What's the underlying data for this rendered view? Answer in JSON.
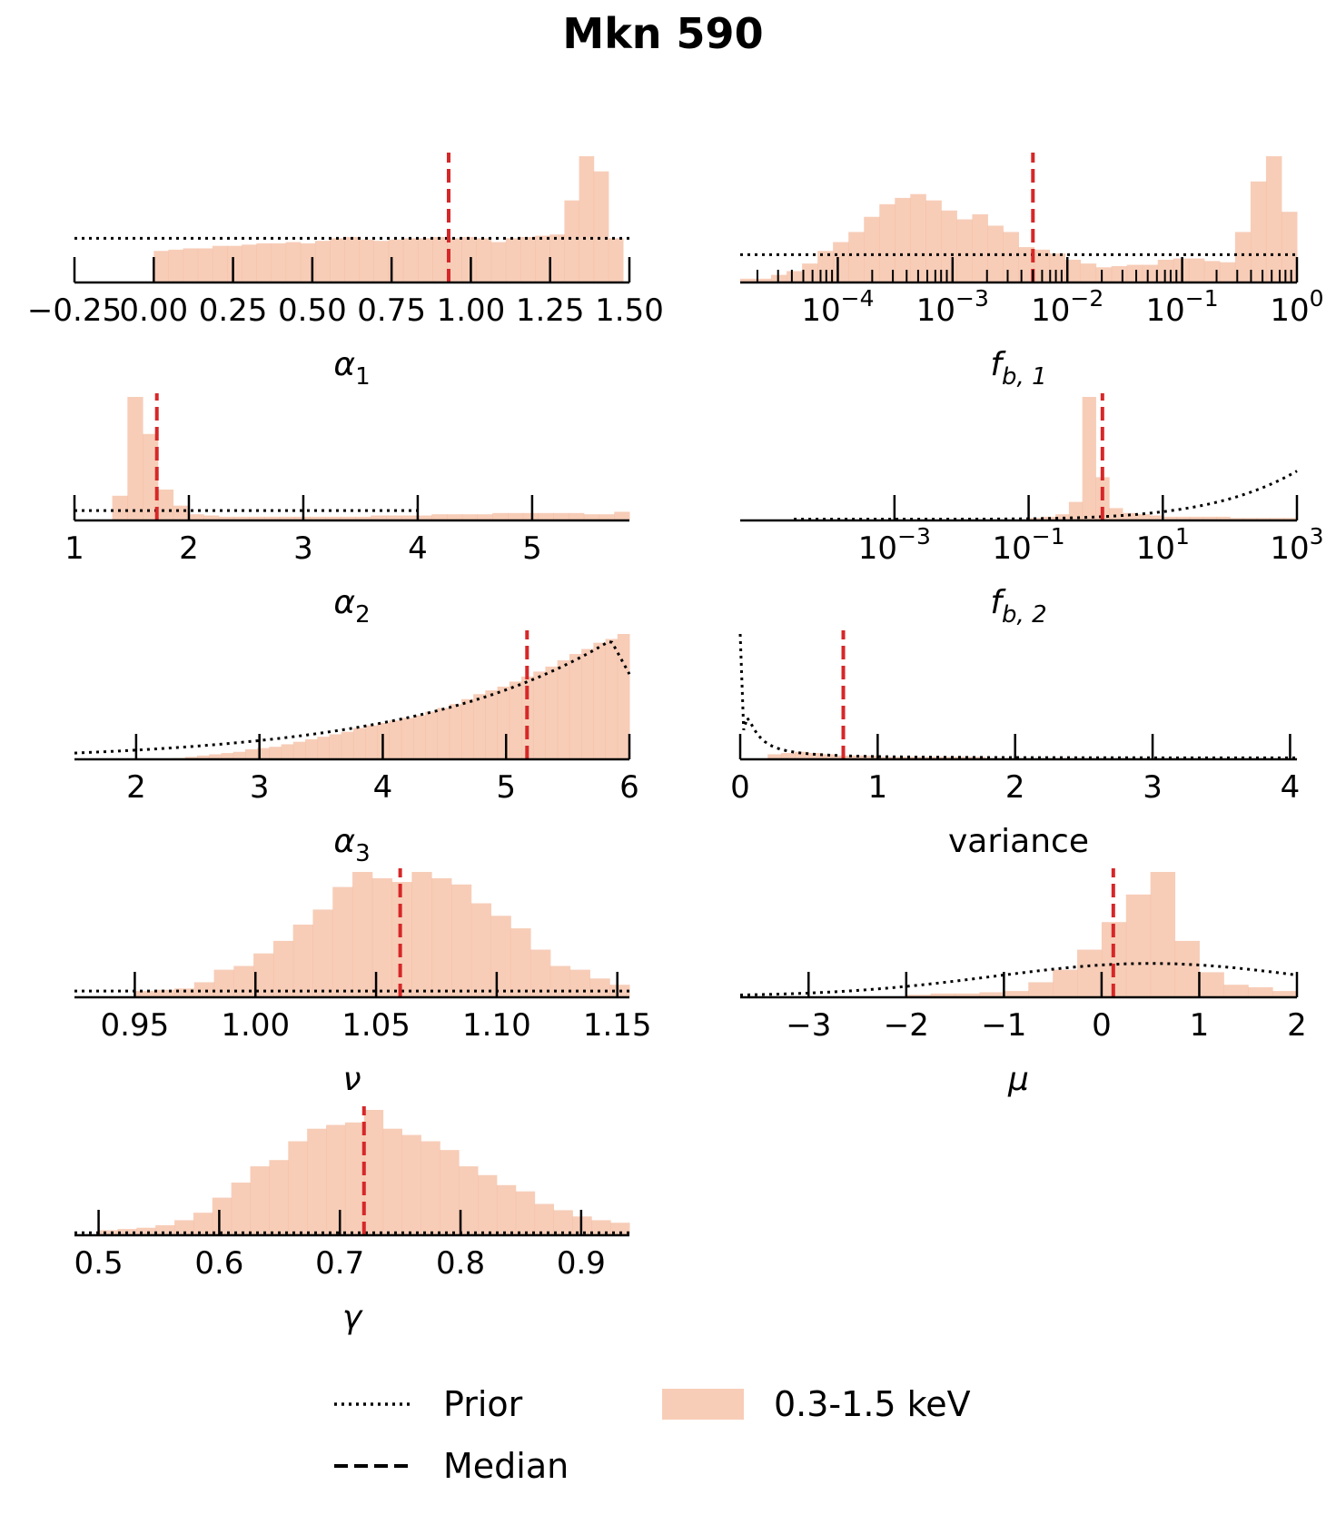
{
  "title": "Mkn 590",
  "colors": {
    "hist_fill": "#f4b89a",
    "median": "#d62728",
    "prior": "#000000"
  },
  "legend": {
    "prior_label": "Prior",
    "median_label": "Median",
    "hist_label": "0.3-1.5 keV"
  },
  "chart_data": [
    {
      "id": "alpha1",
      "type": "bar",
      "label": "α₁",
      "label_base": "α",
      "label_sub": "1",
      "label_italic": true,
      "scale": "linear",
      "xlim": [
        -0.25,
        1.5
      ],
      "ticks": [
        -0.25,
        0.0,
        0.25,
        0.5,
        0.75,
        1.0,
        1.25,
        1.5
      ],
      "tick_labels": [
        "−0.25",
        "0.00",
        "0.25",
        "0.50",
        "0.75",
        "1.00",
        "1.25",
        "1.50"
      ],
      "minor_ticks": [],
      "hist": {
        "start": 0.0,
        "end": 1.48,
        "heights": [
          25,
          26,
          27,
          27,
          29,
          29,
          30,
          31,
          31,
          32,
          31,
          33,
          35,
          36,
          34,
          33,
          34,
          35,
          35,
          36,
          35,
          36,
          35,
          32,
          35,
          36,
          37,
          38,
          65,
          100,
          88,
          35
        ]
      },
      "median": 0.93,
      "prior": {
        "shape": "flat",
        "x": [
          -0.25,
          1.5
        ],
        "level": 35
      }
    },
    {
      "id": "fb1",
      "type": "bar",
      "label": "f_b,1",
      "label_base": "f",
      "label_sub": "b, 1",
      "label_italic": true,
      "scale": "log",
      "xlim": [
        -4.85,
        0.0
      ],
      "ticks": [
        -4,
        -3,
        -2,
        -1,
        0
      ],
      "tick_labels": [
        "10",
        "10",
        "10",
        "10",
        "10"
      ],
      "tick_exps": [
        "−4",
        "−3",
        "−2",
        "−1",
        "0"
      ],
      "minor_ticks": [
        -4.7,
        -4.52,
        -4.4,
        -4.3,
        -4.22,
        -4.15,
        -4.1,
        -4.05,
        -3.7,
        -3.52,
        -3.4,
        -3.3,
        -3.22,
        -3.15,
        -3.1,
        -3.05,
        -2.7,
        -2.52,
        -2.4,
        -2.3,
        -2.22,
        -2.15,
        -2.1,
        -2.05,
        -1.7,
        -1.52,
        -1.4,
        -1.3,
        -1.22,
        -1.15,
        -1.1,
        -1.05,
        -0.7,
        -0.52,
        -0.4,
        -0.3,
        -0.22,
        -0.15,
        -0.1,
        -0.05
      ],
      "hist": {
        "start": -4.85,
        "end": 0.0,
        "heights": [
          3,
          3,
          6,
          9,
          15,
          25,
          32,
          40,
          52,
          62,
          67,
          70,
          65,
          57,
          50,
          54,
          45,
          40,
          28,
          26,
          23,
          18,
          15,
          12,
          13,
          14,
          14,
          18,
          19,
          19,
          17,
          16,
          40,
          80,
          100,
          56
        ]
      },
      "median": -2.3,
      "prior": {
        "shape": "flat",
        "x": [
          -4.85,
          0.0
        ],
        "level": 22
      }
    },
    {
      "id": "alpha2",
      "type": "bar",
      "label": "α₂",
      "label_base": "α",
      "label_sub": "2",
      "label_italic": true,
      "scale": "linear",
      "xlim": [
        1.0,
        5.85
      ],
      "ticks": [
        1,
        2,
        3,
        4,
        5
      ],
      "tick_labels": [
        "1",
        "2",
        "3",
        "4",
        "5"
      ],
      "minor_ticks": [],
      "hist": {
        "start": 1.33,
        "end": 5.85,
        "heights": [
          20,
          100,
          70,
          25,
          12,
          5,
          4,
          3,
          3,
          3,
          3,
          3,
          3,
          3,
          3,
          3,
          3,
          4,
          4,
          4,
          4,
          5,
          5,
          5,
          5,
          6,
          6,
          6,
          6,
          6,
          6,
          5,
          5,
          7
        ]
      },
      "median": 1.72,
      "prior": {
        "shape": "flat",
        "x": [
          1.0,
          4.0
        ],
        "level": 8
      }
    },
    {
      "id": "fb2",
      "type": "bar",
      "label": "f_b,2",
      "label_base": "f",
      "label_sub": "b, 2",
      "label_italic": true,
      "scale": "log",
      "xlim": [
        -5.3,
        3.0
      ],
      "ticks": [
        -3,
        -1,
        1,
        3
      ],
      "tick_labels": [
        "10",
        "10",
        "10",
        "10"
      ],
      "tick_exps": [
        "−3",
        "−1",
        "1",
        "3"
      ],
      "minor_ticks": [],
      "hist": {
        "start": -1.0,
        "end": 3.0,
        "heights": [
          2,
          3,
          5,
          15,
          100,
          35,
          10,
          6,
          5,
          4,
          3,
          3,
          3,
          3,
          3,
          2,
          2,
          2,
          2,
          2
        ]
      },
      "median": 0.1,
      "prior": {
        "shape": "rising",
        "x": [
          -4.5,
          3.0
        ],
        "end_level": 40
      }
    },
    {
      "id": "alpha3",
      "type": "bar",
      "label": "α₃",
      "label_base": "α",
      "label_sub": "3",
      "label_italic": true,
      "scale": "linear",
      "xlim": [
        1.5,
        6.0
      ],
      "ticks": [
        2,
        3,
        4,
        5,
        6
      ],
      "tick_labels": [
        "2",
        "3",
        "4",
        "5",
        "6"
      ],
      "minor_ticks": [],
      "hist": {
        "start": 2.3,
        "end": 6.0,
        "heights": [
          1,
          2,
          3,
          4,
          5,
          6,
          8,
          9,
          10,
          12,
          14,
          16,
          18,
          20,
          22,
          25,
          27,
          29,
          31,
          33,
          35,
          38,
          41,
          44,
          48,
          52,
          55,
          58,
          62,
          66,
          70,
          74,
          79,
          84,
          88,
          93,
          96,
          100
        ]
      },
      "median": 5.17,
      "prior": {
        "shape": "alpha3",
        "x": [
          1.5,
          6.0
        ]
      }
    },
    {
      "id": "variance",
      "type": "bar",
      "label": "variance",
      "label_base": "variance",
      "label_sub": "",
      "label_italic": false,
      "scale": "linear",
      "xlim": [
        0.0,
        4.05
      ],
      "ticks": [
        0,
        1,
        2,
        3,
        4
      ],
      "tick_labels": [
        "0",
        "1",
        "2",
        "3",
        "4"
      ],
      "minor_ticks": [],
      "hist": {
        "start": 0.2,
        "end": 4.05,
        "heights": [
          4,
          5,
          6,
          5,
          4,
          3,
          3,
          3,
          2,
          2,
          2,
          2,
          2,
          2,
          2,
          2,
          1,
          1,
          1,
          1,
          1,
          1,
          1,
          1,
          1,
          1,
          1,
          1,
          1,
          1,
          1,
          1,
          1,
          1,
          1,
          1,
          1,
          1,
          1
        ]
      },
      "median": 0.75,
      "prior": {
        "shape": "invgamma",
        "x": [
          0.0,
          4.05
        ]
      }
    },
    {
      "id": "nu",
      "type": "bar",
      "label": "ν",
      "label_base": "ν",
      "label_sub": "",
      "label_italic": true,
      "scale": "linear",
      "xlim": [
        0.925,
        1.155
      ],
      "ticks": [
        0.95,
        1.0,
        1.05,
        1.1,
        1.15
      ],
      "tick_labels": [
        "0.95",
        "1.00",
        "1.05",
        "1.10",
        "1.15"
      ],
      "minor_ticks": [],
      "hist": {
        "start": 0.95,
        "end": 1.155,
        "heights": [
          5,
          6,
          7,
          12,
          22,
          25,
          35,
          45,
          58,
          70,
          88,
          100,
          95,
          92,
          100,
          95,
          90,
          75,
          65,
          55,
          38,
          25,
          22,
          15,
          10
        ]
      },
      "median": 1.06,
      "prior": {
        "shape": "flat",
        "x": [
          0.925,
          1.155
        ],
        "level": 5
      }
    },
    {
      "id": "mu",
      "type": "bar",
      "label": "μ",
      "label_base": "μ",
      "label_sub": "",
      "label_italic": true,
      "scale": "linear",
      "xlim": [
        -3.7,
        2.0
      ],
      "ticks": [
        -3,
        -2,
        -1,
        0,
        1,
        2
      ],
      "tick_labels": [
        "−3",
        "−2",
        "−1",
        "0",
        "1",
        "2"
      ],
      "minor_ticks": [],
      "hist": {
        "start": -2.0,
        "end": 2.0,
        "heights": [
          2,
          3,
          3,
          4,
          5,
          12,
          22,
          38,
          60,
          82,
          100,
          45,
          20,
          10,
          8,
          5
        ]
      },
      "median": 0.12,
      "prior": {
        "shape": "gauss",
        "x": [
          -3.7,
          2.0
        ],
        "center": 0.5,
        "sigma": 1.6,
        "level": 27
      }
    },
    {
      "id": "gamma",
      "type": "bar",
      "label": "γ",
      "label_base": "γ",
      "label_sub": "",
      "label_italic": true,
      "scale": "linear",
      "xlim": [
        0.48,
        0.94
      ],
      "ticks": [
        0.5,
        0.6,
        0.7,
        0.8,
        0.9
      ],
      "tick_labels": [
        "0.5",
        "0.6",
        "0.7",
        "0.8",
        "0.9"
      ],
      "minor_ticks": [],
      "hist": {
        "start": 0.5,
        "end": 0.94,
        "heights": [
          4,
          5,
          6,
          8,
          12,
          18,
          30,
          42,
          55,
          60,
          75,
          85,
          88,
          90,
          100,
          85,
          80,
          75,
          68,
          55,
          48,
          40,
          35,
          25,
          20,
          15,
          12,
          10
        ]
      },
      "median": 0.72,
      "prior": {
        "shape": "flat",
        "x": [
          0.48,
          0.94
        ],
        "level": 2
      }
    }
  ]
}
